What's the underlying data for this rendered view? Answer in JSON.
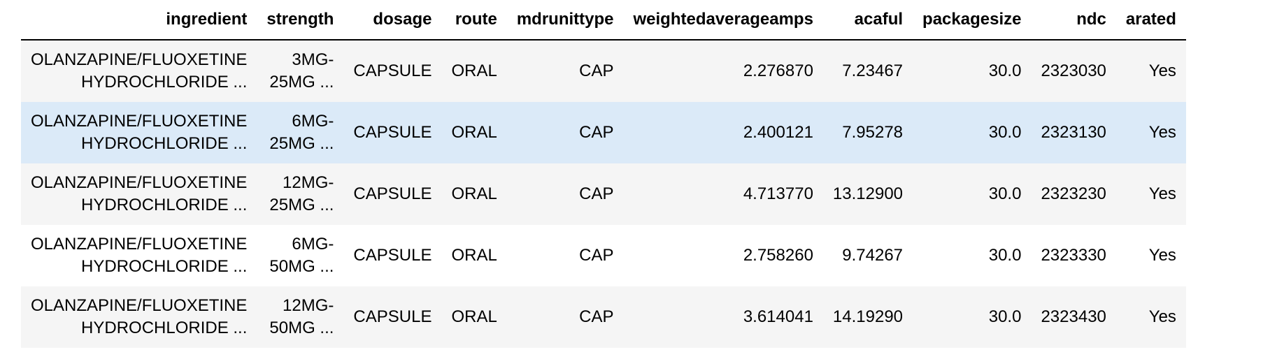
{
  "table": {
    "columns": [
      "ingredient",
      "strength",
      "dosage",
      "route",
      "mdrunittype",
      "weightedaverageamps",
      "acaful",
      "packagesize",
      "ndc",
      "arated"
    ],
    "rows": [
      {
        "ingredient": [
          "OLANZAPINE/FLUOXETINE",
          "HYDROCHLORIDE ..."
        ],
        "strength": [
          "3MG-",
          "25MG ..."
        ],
        "dosage": "CAPSULE",
        "route": "ORAL",
        "mdrunittype": "CAP",
        "weightedaverageamps": "2.276870",
        "acaful": "7.23467",
        "packagesize": "30.0",
        "ndc": "2323030",
        "arated": "Yes"
      },
      {
        "ingredient": [
          "OLANZAPINE/FLUOXETINE",
          "HYDROCHLORIDE ..."
        ],
        "strength": [
          "6MG-",
          "25MG ..."
        ],
        "dosage": "CAPSULE",
        "route": "ORAL",
        "mdrunittype": "CAP",
        "weightedaverageamps": "2.400121",
        "acaful": "7.95278",
        "packagesize": "30.0",
        "ndc": "2323130",
        "arated": "Yes"
      },
      {
        "ingredient": [
          "OLANZAPINE/FLUOXETINE",
          "HYDROCHLORIDE ..."
        ],
        "strength": [
          "12MG-",
          "25MG ..."
        ],
        "dosage": "CAPSULE",
        "route": "ORAL",
        "mdrunittype": "CAP",
        "weightedaverageamps": "4.713770",
        "acaful": "13.12900",
        "packagesize": "30.0",
        "ndc": "2323230",
        "arated": "Yes"
      },
      {
        "ingredient": [
          "OLANZAPINE/FLUOXETINE",
          "HYDROCHLORIDE ..."
        ],
        "strength": [
          "6MG-",
          "50MG ..."
        ],
        "dosage": "CAPSULE",
        "route": "ORAL",
        "mdrunittype": "CAP",
        "weightedaverageamps": "2.758260",
        "acaful": "9.74267",
        "packagesize": "30.0",
        "ndc": "2323330",
        "arated": "Yes"
      },
      {
        "ingredient": [
          "OLANZAPINE/FLUOXETINE",
          "HYDROCHLORIDE ..."
        ],
        "strength": [
          "12MG-",
          "50MG ..."
        ],
        "dosage": "CAPSULE",
        "route": "ORAL",
        "mdrunittype": "CAP",
        "weightedaverageamps": "3.614041",
        "acaful": "14.19290",
        "packagesize": "30.0",
        "ndc": "2323430",
        "arated": "Yes"
      }
    ]
  },
  "colors": {
    "row_odd": "#f5f5f5",
    "row_even": "#ffffff",
    "row_hover": "#dbeaf8",
    "header_rule": "#000000"
  }
}
